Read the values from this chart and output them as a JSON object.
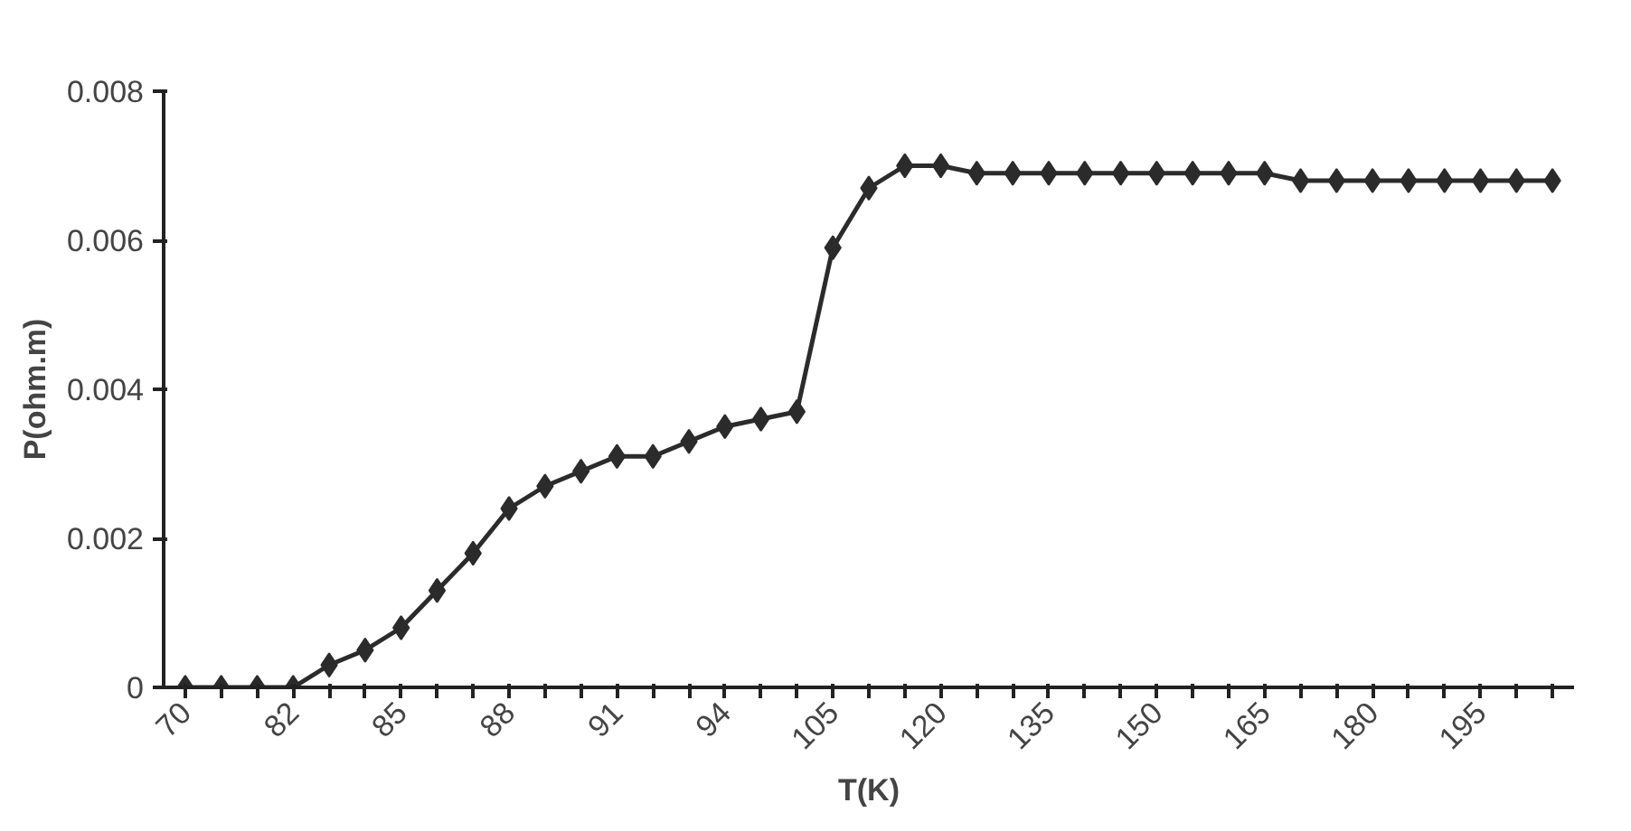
{
  "chart_data": {
    "type": "line",
    "xlabel": "T(K)",
    "ylabel": "P(ohm.m)",
    "categories": [
      "70",
      null,
      null,
      "82",
      null,
      null,
      "85",
      null,
      null,
      "88",
      null,
      null,
      "91",
      null,
      null,
      "94",
      null,
      null,
      "105",
      null,
      null,
      "120",
      null,
      null,
      "135",
      null,
      null,
      "150",
      null,
      null,
      "165",
      null,
      null,
      "180",
      null,
      null,
      "195",
      null,
      null
    ],
    "series": [
      {
        "color": "#2b2b2b",
        "values": [
          0,
          0,
          0,
          0,
          0.0003,
          0.0005,
          0.0008,
          0.0013,
          0.0018,
          0.0024,
          0.0027,
          0.0029,
          0.0031,
          0.0031,
          0.0033,
          0.0035,
          0.0036,
          0.0037,
          0.0059,
          0.0067,
          0.007,
          0.007,
          0.0069,
          0.0069,
          0.0069,
          0.0069,
          0.0069,
          0.0069,
          0.0069,
          0.0069,
          0.0069,
          0.0068,
          0.0068,
          0.0068,
          0.0068,
          0.0068,
          0.0068,
          0.0068,
          0.0068
        ]
      }
    ],
    "ylim": [
      0,
      0.008
    ],
    "yticks": [
      0,
      0.002,
      0.004,
      0.006,
      0.008
    ],
    "grid": false,
    "marker": "diamond",
    "line_style": "solid"
  }
}
